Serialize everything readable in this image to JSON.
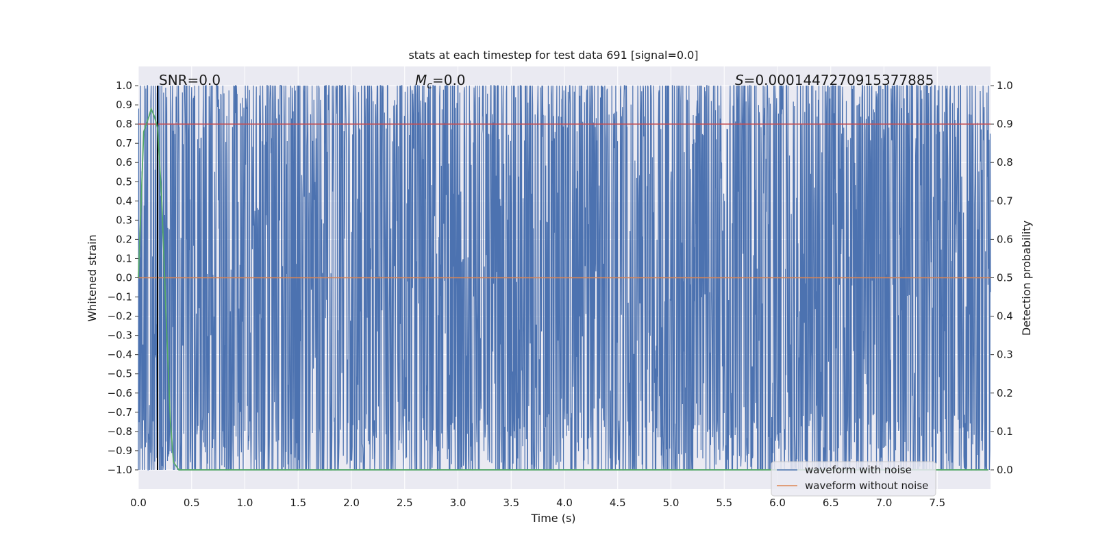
{
  "chart_data": {
    "type": "line",
    "title": "stats at each timestep for test data 691 [signal=0.0]",
    "xlabel": "Time (s)",
    "ylabel_left": "Whitened strain",
    "ylabel_right": "Detection probability",
    "xlim": [
      0.0,
      8.0
    ],
    "ylim_left": [
      -1.1,
      1.1
    ],
    "ylim_right": [
      -0.05,
      1.05
    ],
    "x_ticks": [
      "0.0",
      "0.5",
      "1.0",
      "1.5",
      "2.0",
      "2.5",
      "3.0",
      "3.5",
      "4.0",
      "4.5",
      "5.0",
      "5.5",
      "6.0",
      "6.5",
      "7.0",
      "7.5"
    ],
    "y_ticks_left": [
      "1.0",
      "0.9",
      "0.8",
      "0.7",
      "0.6",
      "0.5",
      "0.4",
      "0.3",
      "0.2",
      "0.1",
      "0.0",
      "−0.1",
      "−0.2",
      "−0.3",
      "−0.4",
      "−0.5",
      "−0.6",
      "−0.7",
      "−0.8",
      "−0.9",
      "−1.0"
    ],
    "y_ticks_right": [
      "1.0",
      "0.9",
      "0.8",
      "0.7",
      "0.6",
      "0.5",
      "0.4",
      "0.3",
      "0.2",
      "0.1",
      "0.0"
    ],
    "annotations": {
      "snr": "SNR=0.0",
      "mc_symbol": "M",
      "mc_sub": "c",
      "mc_value": "=0.0",
      "s_symbol": "S",
      "s_value": "=0.0001447270915377885"
    },
    "grid": true,
    "legend_placement": "lower-right",
    "series": [
      {
        "name": "waveform with noise",
        "color": "#4c72b0",
        "axis": "left",
        "description_values": {
          "min": -1.0,
          "max": 1.0,
          "x_range": [
            0.0,
            8.0
          ]
        }
      },
      {
        "name": "waveform without noise",
        "color": "#dd8452",
        "axis": "left",
        "x": [
          0.0,
          8.0
        ],
        "y": [
          0.0,
          0.0
        ]
      },
      {
        "color": "#55a868",
        "axis": "right",
        "x": [
          0.0,
          0.05,
          0.1,
          0.12,
          0.15,
          0.18,
          0.22,
          0.26,
          0.3,
          0.33,
          0.38,
          0.5,
          1.0,
          4.0,
          7.98
        ],
        "y": [
          0.5,
          0.88,
          0.92,
          0.94,
          0.92,
          0.89,
          0.7,
          0.4,
          0.13,
          0.02,
          0.0,
          0.0,
          0.0,
          0.0,
          0.0
        ]
      }
    ],
    "threshold_line": {
      "color": "#c44e52",
      "axis": "right",
      "value": 0.9
    },
    "vertical_marker": {
      "color": "#000000",
      "x": 0.18
    }
  }
}
